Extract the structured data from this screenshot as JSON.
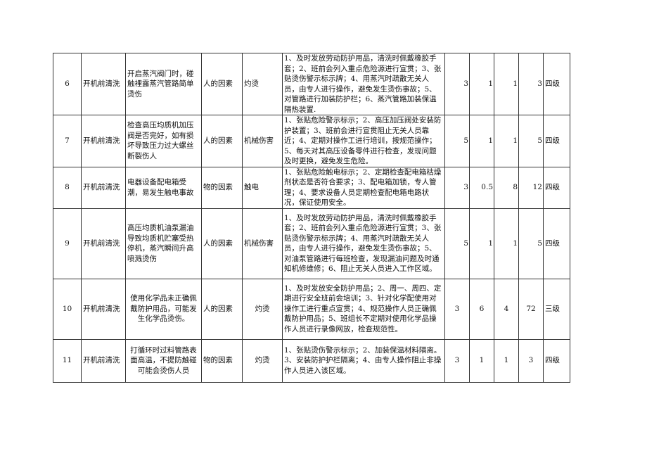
{
  "rows": [
    {
      "no": "6",
      "stage": "开机前清洗",
      "desc": "开启蒸汽阀门时，碰触裡露蒸汽管路简单烫伤",
      "factor": "人的因素",
      "hazard": "灼烫",
      "measures": "1、及时发放劳动防护用品，清洗时佩戴橡胶手套；2、班前会列入重点危险源进行宣贯；3、张贴烫伤警示标示牌；4、用蒸汽时疏散无关人员，由专人进行操作，避免发生烫伤事故；5、对管路进行加装防护栏；6、蒸汽管路加装保温隔热装置.",
      "L": "3",
      "E": "1",
      "C": "1",
      "D": "3",
      "level": "四级"
    },
    {
      "no": "7",
      "stage": "开机前清洗",
      "desc": "检查高压均质机加压阀是否完好，如有损坏导致压力过大螺丝断裂伤人",
      "factor": "人的因素",
      "hazard": "机械伤害",
      "measures": "1、张贴危险警示标示；2、高压加压阀处安装防护装置；3、班前会进行宣贯阻止无关人员靠近；4、定期对操作工进行培训，按规范操作；5、每天对其高压设备零件进行检查，发现问题及时更换，避免发生危险。",
      "L": "5",
      "E": "1",
      "C": "1",
      "D": "5",
      "level": "四级"
    },
    {
      "no": "8",
      "stage": "开机前清洗",
      "desc": "电器设备配电箱受潮，易发生触电事故",
      "factor": "物的因素",
      "hazard": "触电",
      "measures": "1、张贴危险触电标示；2、定期检查配电箱枯燥剂状态是否符合要求；3、配电箱加锁，专人管理；4、要求设备人员定期检查配电箱电路状况，保证使用安全。",
      "L": "3",
      "E": "0.5",
      "C": "8",
      "D": "12",
      "level": "四级"
    },
    {
      "no": "9",
      "stage": "开机前清洗",
      "desc": "高压均质机油泵漏油导致均质机贮塞受热停机，蒸汽瞬间升高喷溅烫伤",
      "factor": "人的因素",
      "hazard": "机械伤害",
      "measures": "1、及时发放劳动防护用品，清洗时佩戴橡胶手套；2、班前会列入重点危险源进行宣贯；3、张贴烫伤警示标示牌；4、用蒸汽时疏散无关人员，由专人进行操作，避免发生烫伤事故；5、对油泵管路进行每班检查，发现漏油问题及时通知机修维修；6、阻止无关人员进入工作区域。",
      "L": "5",
      "E": "1",
      "C": "1",
      "D": "5",
      "level": "四级"
    },
    {
      "no": "10",
      "stage": "开机前清洗",
      "desc": "使用化学品未正确佩戴防护用品，可能发生化学品烫伤。",
      "factor": "人的因素",
      "hazard": "灼烫",
      "measures": "1、及时发放安全防护用品；2、周一、周四、定期进行安全班前会培训；3、针对化学配使用对操作工进行重点宣贯；4、规范操作人员正确佩戴防护用品；5、班组长不定期对使用化学品操作人员进行录像网放，检查规范性。",
      "L": "3",
      "E": "6",
      "C": "4",
      "D": "72",
      "level": "三级"
    },
    {
      "no": "11",
      "stage": "开机前清洗",
      "desc": "打循环时过料管路表面高温，不提防触碰可能会烫伤人员",
      "factor": "物的因素",
      "hazard": "灼烫",
      "measures": "1、张贴烫伤警示标示；2、加装保温材料隔离。3、安装防护护栏隔离；4、由专人操作阻止非操作人员进入该区域。",
      "L": "3",
      "E": "1",
      "C": "1",
      "D": "3",
      "level": "四级"
    }
  ]
}
